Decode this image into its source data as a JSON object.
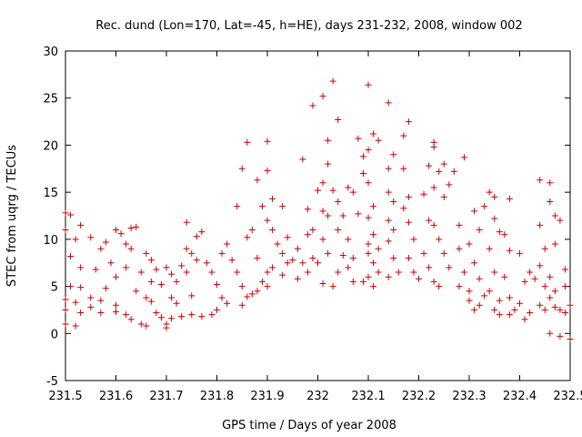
{
  "chart_data": {
    "type": "scatter",
    "title": "Rec. dund (Lon=170, Lat=-45, h=HE), days 231-232, 2008, window 002",
    "xlabel": "GPS time / Days of year 2008",
    "ylabel": "STEC from uqrg / TECUs",
    "xlim": [
      231.5,
      232.5
    ],
    "ylim": [
      -5,
      30
    ],
    "xticks": [
      231.5,
      231.6,
      231.7,
      231.8,
      231.9,
      232,
      232.1,
      232.2,
      232.3,
      232.4,
      232.5
    ],
    "xtick_labels": [
      "231.5",
      "231.6",
      "231.7",
      "231.8",
      "231.9",
      "232",
      "232.1",
      "232.2",
      "232.3",
      "232.4",
      "232.5"
    ],
    "yticks": [
      -5,
      0,
      5,
      10,
      15,
      20,
      25,
      30
    ],
    "ytick_labels": [
      "-5",
      "0",
      "5",
      "10",
      "15",
      "20",
      "25",
      "30"
    ],
    "marker": "+",
    "color": "#cc0000",
    "points": [
      [
        231.5,
        12.8
      ],
      [
        231.51,
        12.6
      ],
      [
        231.5,
        11.0
      ],
      [
        231.52,
        10.0
      ],
      [
        231.51,
        8.2
      ],
      [
        231.53,
        11.5
      ],
      [
        231.55,
        10.2
      ],
      [
        231.53,
        7.0
      ],
      [
        231.56,
        6.8
      ],
      [
        231.51,
        5.0
      ],
      [
        231.53,
        4.9
      ],
      [
        231.5,
        3.6
      ],
      [
        231.52,
        3.3
      ],
      [
        231.5,
        2.5
      ],
      [
        231.53,
        2.2
      ],
      [
        231.5,
        1.0
      ],
      [
        231.52,
        0.8
      ],
      [
        231.55,
        3.8
      ],
      [
        231.55,
        2.8
      ],
      [
        231.57,
        2.2
      ],
      [
        231.57,
        9.0
      ],
      [
        231.58,
        9.7
      ],
      [
        231.59,
        7.5
      ],
      [
        231.6,
        11.0
      ],
      [
        231.61,
        10.6
      ],
      [
        231.62,
        9.5
      ],
      [
        231.63,
        11.2
      ],
      [
        231.64,
        11.3
      ],
      [
        231.63,
        9.0
      ],
      [
        231.6,
        6.0
      ],
      [
        231.58,
        4.8
      ],
      [
        231.57,
        3.5
      ],
      [
        231.6,
        3.0
      ],
      [
        231.6,
        2.3
      ],
      [
        231.62,
        2.0
      ],
      [
        231.63,
        1.5
      ],
      [
        231.65,
        1.0
      ],
      [
        231.66,
        0.8
      ],
      [
        231.62,
        7.0
      ],
      [
        231.65,
        6.5
      ],
      [
        231.66,
        8.5
      ],
      [
        231.67,
        7.8
      ],
      [
        231.67,
        5.5
      ],
      [
        231.66,
        3.8
      ],
      [
        231.67,
        3.4
      ],
      [
        231.68,
        2.2
      ],
      [
        231.69,
        1.7
      ],
      [
        231.7,
        1.0
      ],
      [
        231.7,
        0.6
      ],
      [
        231.64,
        4.5
      ],
      [
        231.68,
        6.8
      ],
      [
        231.7,
        7.0
      ],
      [
        231.71,
        6.3
      ],
      [
        231.69,
        5.2
      ],
      [
        231.71,
        3.8
      ],
      [
        231.72,
        3.2
      ],
      [
        231.71,
        1.6
      ],
      [
        231.73,
        1.8
      ],
      [
        231.74,
        11.8
      ],
      [
        231.76,
        10.3
      ],
      [
        231.77,
        10.8
      ],
      [
        231.74,
        9.0
      ],
      [
        231.75,
        8.5
      ],
      [
        231.76,
        7.8
      ],
      [
        231.73,
        7.2
      ],
      [
        231.74,
        6.5
      ],
      [
        231.72,
        5.5
      ],
      [
        231.75,
        4.0
      ],
      [
        231.75,
        2.0
      ],
      [
        231.77,
        1.8
      ],
      [
        231.78,
        7.5
      ],
      [
        231.79,
        6.5
      ],
      [
        231.8,
        5.2
      ],
      [
        231.81,
        3.8
      ],
      [
        231.82,
        3.2
      ],
      [
        231.8,
        2.5
      ],
      [
        231.79,
        2.0
      ],
      [
        231.81,
        8.5
      ],
      [
        231.82,
        9.5
      ],
      [
        231.83,
        7.8
      ],
      [
        231.84,
        6.5
      ],
      [
        231.84,
        13.5
      ],
      [
        231.85,
        17.5
      ],
      [
        231.86,
        20.3
      ],
      [
        231.88,
        16.3
      ],
      [
        231.89,
        13.5
      ],
      [
        231.87,
        11.0
      ],
      [
        231.86,
        10.2
      ],
      [
        231.88,
        8.0
      ],
      [
        231.85,
        5.0
      ],
      [
        231.87,
        4.2
      ],
      [
        231.86,
        3.9
      ],
      [
        231.88,
        4.5
      ],
      [
        231.85,
        3.0
      ],
      [
        231.9,
        20.4
      ],
      [
        231.9,
        17.3
      ],
      [
        231.91,
        14.3
      ],
      [
        231.9,
        12.0
      ],
      [
        231.91,
        11.0
      ],
      [
        231.92,
        9.5
      ],
      [
        231.91,
        7.0
      ],
      [
        231.9,
        6.5
      ],
      [
        231.9,
        5.0
      ],
      [
        231.89,
        5.5
      ],
      [
        231.93,
        13.5
      ],
      [
        231.94,
        10.2
      ],
      [
        231.93,
        8.5
      ],
      [
        231.94,
        7.5
      ],
      [
        231.93,
        6.2
      ],
      [
        231.95,
        7.8
      ],
      [
        231.96,
        9.0
      ],
      [
        231.96,
        5.8
      ],
      [
        231.97,
        18.5
      ],
      [
        231.98,
        13.2
      ],
      [
        231.99,
        11.0
      ],
      [
        231.98,
        10.5
      ],
      [
        231.99,
        8.0
      ],
      [
        231.98,
        6.5
      ],
      [
        231.97,
        7.5
      ],
      [
        231.99,
        24.2
      ],
      [
        232.01,
        25.2
      ],
      [
        232.02,
        20.5
      ],
      [
        232.02,
        18.0
      ],
      [
        232.01,
        16.0
      ],
      [
        232.0,
        15.2
      ],
      [
        232.01,
        13.0
      ],
      [
        232.02,
        12.5
      ],
      [
        232.01,
        10.0
      ],
      [
        232.02,
        8.5
      ],
      [
        232.0,
        7.5
      ],
      [
        232.01,
        5.3
      ],
      [
        232.03,
        26.8
      ],
      [
        232.04,
        22.7
      ],
      [
        232.03,
        15.2
      ],
      [
        232.04,
        14.0
      ],
      [
        232.05,
        12.5
      ],
      [
        232.04,
        11.0
      ],
      [
        232.05,
        8.3
      ],
      [
        232.04,
        6.5
      ],
      [
        232.03,
        5.0
      ],
      [
        232.06,
        15.5
      ],
      [
        232.07,
        15.0
      ],
      [
        232.08,
        12.7
      ],
      [
        232.06,
        10.0
      ],
      [
        232.07,
        8.0
      ],
      [
        232.06,
        7.0
      ],
      [
        232.07,
        5.5
      ],
      [
        232.08,
        20.7
      ],
      [
        232.09,
        18.8
      ],
      [
        232.09,
        17.0
      ],
      [
        232.1,
        26.4
      ],
      [
        232.11,
        21.2
      ],
      [
        232.1,
        19.5
      ],
      [
        232.1,
        16.0
      ],
      [
        232.11,
        13.5
      ],
      [
        232.1,
        12.3
      ],
      [
        232.12,
        20.5
      ],
      [
        232.11,
        10.5
      ],
      [
        232.1,
        9.5
      ],
      [
        232.12,
        9.0
      ],
      [
        232.1,
        8.5
      ],
      [
        232.11,
        7.5
      ],
      [
        232.12,
        6.5
      ],
      [
        232.1,
        6.0
      ],
      [
        232.09,
        5.5
      ],
      [
        232.11,
        5.0
      ],
      [
        232.14,
        24.5
      ],
      [
        232.14,
        17.5
      ],
      [
        232.15,
        19.0
      ],
      [
        232.14,
        15.0
      ],
      [
        232.15,
        14.0
      ],
      [
        232.14,
        12.0
      ],
      [
        232.15,
        11.0
      ],
      [
        232.14,
        9.8
      ],
      [
        232.15,
        8.0
      ],
      [
        232.16,
        6.5
      ],
      [
        232.14,
        6.0
      ],
      [
        232.17,
        21.0
      ],
      [
        232.18,
        22.5
      ],
      [
        232.17,
        17.5
      ],
      [
        232.18,
        14.5
      ],
      [
        232.17,
        13.3
      ],
      [
        232.18,
        11.8
      ],
      [
        232.19,
        10.0
      ],
      [
        232.18,
        8.0
      ],
      [
        232.19,
        6.5
      ],
      [
        232.2,
        5.8
      ],
      [
        232.21,
        14.8
      ],
      [
        232.22,
        17.8
      ],
      [
        232.23,
        20.3
      ],
      [
        232.23,
        19.8
      ],
      [
        232.24,
        17.2
      ],
      [
        232.23,
        15.5
      ],
      [
        232.22,
        12.0
      ],
      [
        232.23,
        11.5
      ],
      [
        232.21,
        8.5
      ],
      [
        232.22,
        7.0
      ],
      [
        232.23,
        5.5
      ],
      [
        232.25,
        18.0
      ],
      [
        232.26,
        15.8
      ],
      [
        232.25,
        14.5
      ],
      [
        232.24,
        10.0
      ],
      [
        232.25,
        8.5
      ],
      [
        232.26,
        7.0
      ],
      [
        232.24,
        5.0
      ],
      [
        232.27,
        17.2
      ],
      [
        232.28,
        11.5
      ],
      [
        232.28,
        9.0
      ],
      [
        232.29,
        18.7
      ],
      [
        232.29,
        6.5
      ],
      [
        232.28,
        5.0
      ],
      [
        232.3,
        4.5
      ],
      [
        232.31,
        13.0
      ],
      [
        232.32,
        11.0
      ],
      [
        232.3,
        9.5
      ],
      [
        232.31,
        7.5
      ],
      [
        232.32,
        5.8
      ],
      [
        232.33,
        4.0
      ],
      [
        232.3,
        3.5
      ],
      [
        232.32,
        3.0
      ],
      [
        232.31,
        2.5
      ],
      [
        232.33,
        13.5
      ],
      [
        232.34,
        15.0
      ],
      [
        232.35,
        14.5
      ],
      [
        232.35,
        12.2
      ],
      [
        232.34,
        9.0
      ],
      [
        232.35,
        6.5
      ],
      [
        232.34,
        4.5
      ],
      [
        232.36,
        3.5
      ],
      [
        232.35,
        2.5
      ],
      [
        232.36,
        2.0
      ],
      [
        232.36,
        10.8
      ],
      [
        232.37,
        10.5
      ],
      [
        232.38,
        14.3
      ],
      [
        232.38,
        8.8
      ],
      [
        232.37,
        6.0
      ],
      [
        232.38,
        3.8
      ],
      [
        232.39,
        2.5
      ],
      [
        232.38,
        2.0
      ],
      [
        232.4,
        8.5
      ],
      [
        232.41,
        5.5
      ],
      [
        232.4,
        3.2
      ],
      [
        232.42,
        2.2
      ],
      [
        232.41,
        1.5
      ],
      [
        232.42,
        6.5
      ],
      [
        232.43,
        5.8
      ],
      [
        232.44,
        16.3
      ],
      [
        232.44,
        11.5
      ],
      [
        232.45,
        9.0
      ],
      [
        232.44,
        7.2
      ],
      [
        232.45,
        5.0
      ],
      [
        232.44,
        3.0
      ],
      [
        232.45,
        2.5
      ],
      [
        232.46,
        16.0
      ],
      [
        232.46,
        14.0
      ],
      [
        232.47,
        12.5
      ],
      [
        232.48,
        12.0
      ],
      [
        232.47,
        9.5
      ],
      [
        232.46,
        6.0
      ],
      [
        232.47,
        4.5
      ],
      [
        232.46,
        3.8
      ],
      [
        232.47,
        2.8
      ],
      [
        232.46,
        0.0
      ],
      [
        232.48,
        2.5
      ],
      [
        232.48,
        -0.3
      ],
      [
        232.49,
        6.8
      ],
      [
        232.49,
        5.0
      ],
      [
        232.5,
        3.0
      ],
      [
        232.49,
        2.2
      ],
      [
        232.5,
        -0.6
      ]
    ]
  }
}
